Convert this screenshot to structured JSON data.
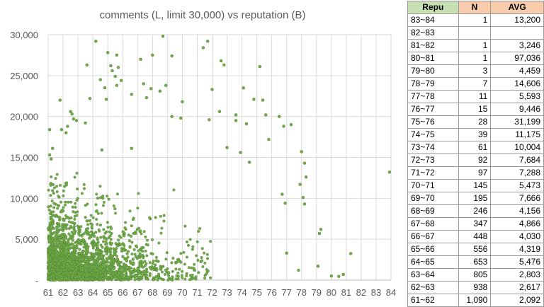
{
  "chart_data": {
    "type": "scatter",
    "title": "comments (L, limit 30,000) vs reputation (B)",
    "xlabel": "",
    "ylabel": "",
    "xlim": [
      61,
      84
    ],
    "ylim": [
      0,
      30000
    ],
    "x_ticks": [
      "61",
      "62",
      "63",
      "64",
      "65",
      "66",
      "67",
      "68",
      "69",
      "70",
      "71",
      "72",
      "73",
      "74",
      "75",
      "76",
      "77",
      "78",
      "79",
      "80",
      "81",
      "82",
      "83",
      "84"
    ],
    "y_ticks": [
      "-",
      "5,000",
      "10,000",
      "15,000",
      "20,000",
      "25,000",
      "30,000"
    ],
    "grid": true,
    "marker_color": "#70ad47",
    "marker_edge": "#4e7a32",
    "points": [
      [
        83.9,
        13200
      ],
      [
        81.3,
        3246
      ],
      [
        79.2,
        5700
      ],
      [
        79.3,
        6200
      ],
      [
        79.1,
        1700
      ],
      [
        78.0,
        15700
      ],
      [
        78.2,
        14300
      ],
      [
        77.9,
        11700
      ],
      [
        78.3,
        12600
      ],
      [
        78.1,
        10100
      ],
      [
        78.2,
        9300
      ],
      [
        77.8,
        1200
      ],
      [
        77.3,
        19000
      ],
      [
        76.8,
        18800
      ],
      [
        76.9,
        9400
      ],
      [
        76.7,
        10500
      ],
      [
        77.0,
        3300
      ],
      [
        76.5,
        20000
      ],
      [
        75.4,
        22000
      ],
      [
        75.6,
        20200
      ],
      [
        75.8,
        17200
      ],
      [
        75.2,
        26100
      ],
      [
        74.8,
        22100
      ],
      [
        74.1,
        23500
      ],
      [
        73.6,
        19500
      ],
      [
        72.6,
        26800
      ],
      [
        72.8,
        26300
      ],
      [
        71.7,
        29200
      ],
      [
        71.4,
        28400
      ],
      [
        72.0,
        23300
      ],
      [
        69.3,
        27400
      ],
      [
        68.7,
        29800
      ],
      [
        68.0,
        27500
      ],
      [
        67.2,
        27000
      ],
      [
        65.0,
        27800
      ],
      [
        65.6,
        27500
      ],
      [
        64.2,
        29200
      ],
      [
        63.6,
        26300
      ],
      [
        65.2,
        26200
      ],
      [
        65.7,
        26000
      ],
      [
        65.3,
        25600
      ],
      [
        65.5,
        24900
      ],
      [
        65.9,
        24400
      ],
      [
        64.5,
        24500
      ],
      [
        65.6,
        23800
      ],
      [
        64.8,
        23500
      ],
      [
        63.8,
        22200
      ],
      [
        64.9,
        22100
      ],
      [
        61.8,
        22000
      ],
      [
        67.4,
        24000
      ],
      [
        67.9,
        23400
      ],
      [
        68.9,
        23800
      ],
      [
        68.5,
        23100
      ],
      [
        66.6,
        22700
      ],
      [
        67.6,
        22300
      ],
      [
        70.0,
        21800
      ],
      [
        69.3,
        20000
      ],
      [
        69.9,
        19800
      ],
      [
        72.5,
        20600
      ],
      [
        71.8,
        19600
      ],
      [
        73.6,
        20200
      ],
      [
        74.3,
        19100
      ],
      [
        62.5,
        20600
      ],
      [
        62.6,
        20300
      ],
      [
        62.7,
        19700
      ],
      [
        62.9,
        19500
      ],
      [
        63.5,
        19200
      ],
      [
        62.3,
        18800
      ],
      [
        61.9,
        18400
      ],
      [
        62.2,
        18000
      ],
      [
        61.1,
        18400
      ],
      [
        61.3,
        16100
      ],
      [
        61.1,
        15300
      ],
      [
        61.2,
        14800
      ],
      [
        64.6,
        15900
      ],
      [
        66.6,
        16100
      ],
      [
        73.0,
        16200
      ],
      [
        73.9,
        15600
      ],
      [
        74.5,
        14400
      ],
      [
        80.0,
        500
      ],
      [
        80.5,
        450
      ],
      [
        80.8,
        700
      ]
    ],
    "cluster_seed": 7,
    "cluster_count": 2600
  },
  "table": {
    "headers": [
      "Repu",
      "N",
      "AVG"
    ],
    "rows": [
      [
        "83~84",
        "1",
        "13,200"
      ],
      [
        "82~83",
        "",
        ""
      ],
      [
        "81~82",
        "1",
        "3,246"
      ],
      [
        "80~81",
        "1",
        "97,036"
      ],
      [
        "79~80",
        "3",
        "4,459"
      ],
      [
        "78~79",
        "7",
        "14,606"
      ],
      [
        "77~78",
        "11",
        "5,593"
      ],
      [
        "76~77",
        "15",
        "9,446"
      ],
      [
        "75~76",
        "28",
        "31,199"
      ],
      [
        "74~75",
        "39",
        "11,175"
      ],
      [
        "73~74",
        "61",
        "10,004"
      ],
      [
        "72~73",
        "92",
        "7,684"
      ],
      [
        "71~72",
        "97",
        "7,288"
      ],
      [
        "70~71",
        "145",
        "5,473"
      ],
      [
        "69~70",
        "195",
        "7,666"
      ],
      [
        "68~69",
        "246",
        "4,156"
      ],
      [
        "67~68",
        "347",
        "4,866"
      ],
      [
        "66~67",
        "448",
        "4,030"
      ],
      [
        "65~66",
        "556",
        "4,319"
      ],
      [
        "64~65",
        "653",
        "5,476"
      ],
      [
        "63~64",
        "805",
        "2,803"
      ],
      [
        "62~63",
        "938",
        "2,617"
      ],
      [
        "61~62",
        "1,090",
        "2,092"
      ]
    ]
  }
}
